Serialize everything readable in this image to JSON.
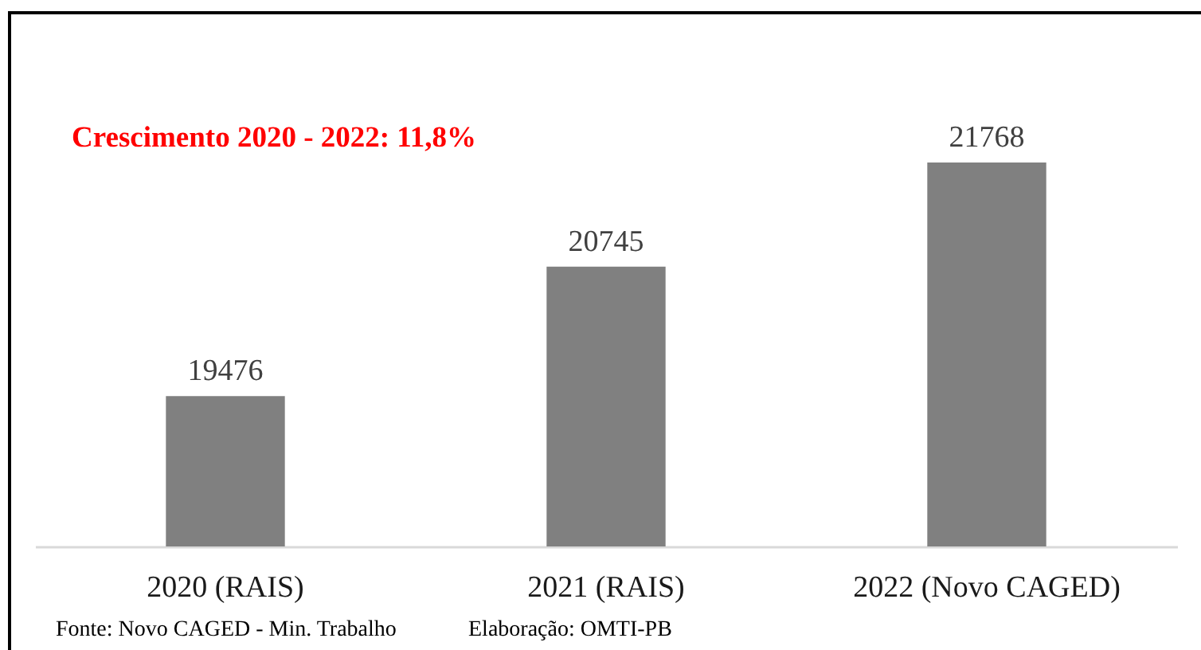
{
  "chart_data": {
    "type": "bar",
    "categories": [
      "2020 (RAIS)",
      "2021 (RAIS)",
      "2022 (Novo CAGED)"
    ],
    "values": [
      19476,
      20745,
      21768
    ],
    "color": "#808080",
    "data_labels": true,
    "ylim": [
      18000,
      21768
    ],
    "tick_labels": "x",
    "annotations": [
      "Crescimento 2020 - 2022: 11,8%",
      "Fonte: Novo CAGED - Min. Trabalho",
      "Elaboração: OMTI-PB"
    ]
  }
}
